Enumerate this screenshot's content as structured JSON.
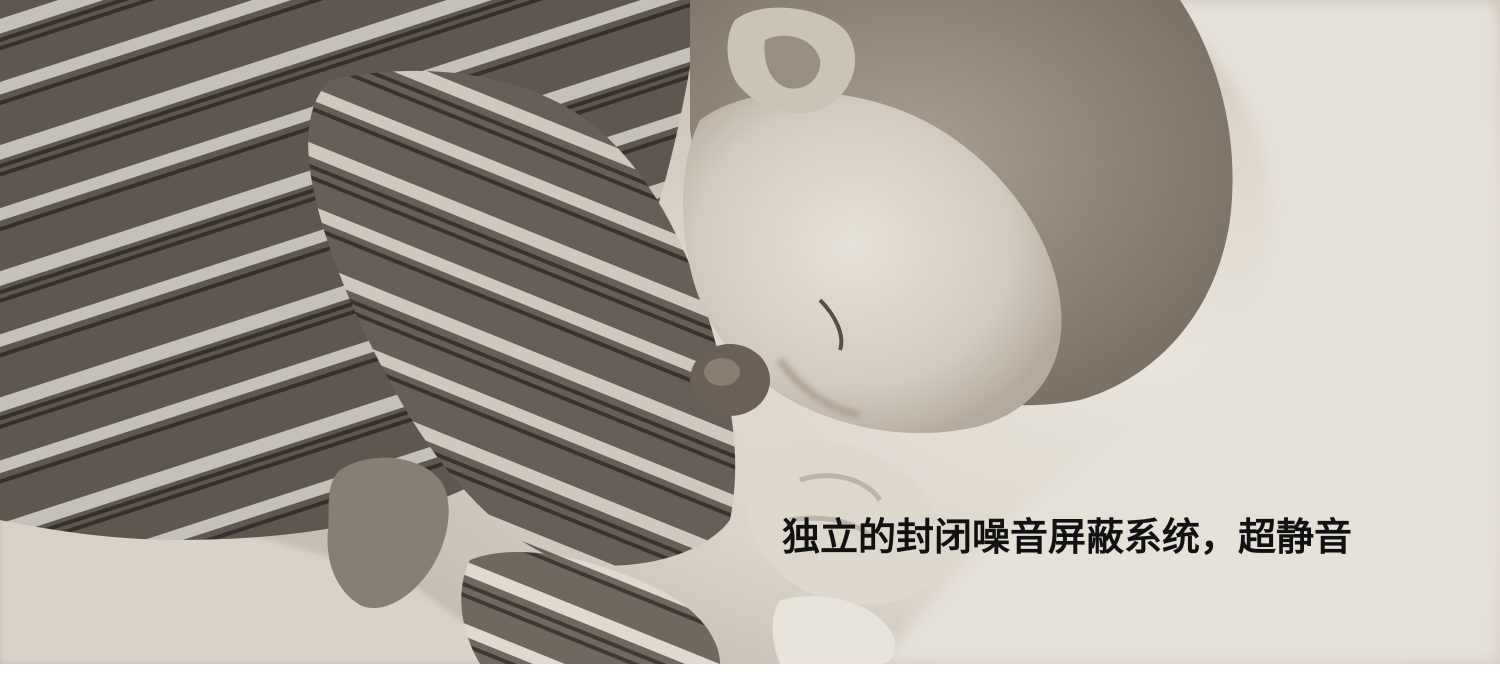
{
  "banner": {
    "photo": "sleeping-baby-sepia-photo",
    "caption": "独立的封闭噪音屏蔽系统，超静音"
  },
  "colors": {
    "caption_text": "#111111",
    "sepia_light": "#efe9df",
    "sepia_mid": "#a39a8e",
    "sepia_dark": "#4a4139",
    "page_background": "#ffffff"
  }
}
